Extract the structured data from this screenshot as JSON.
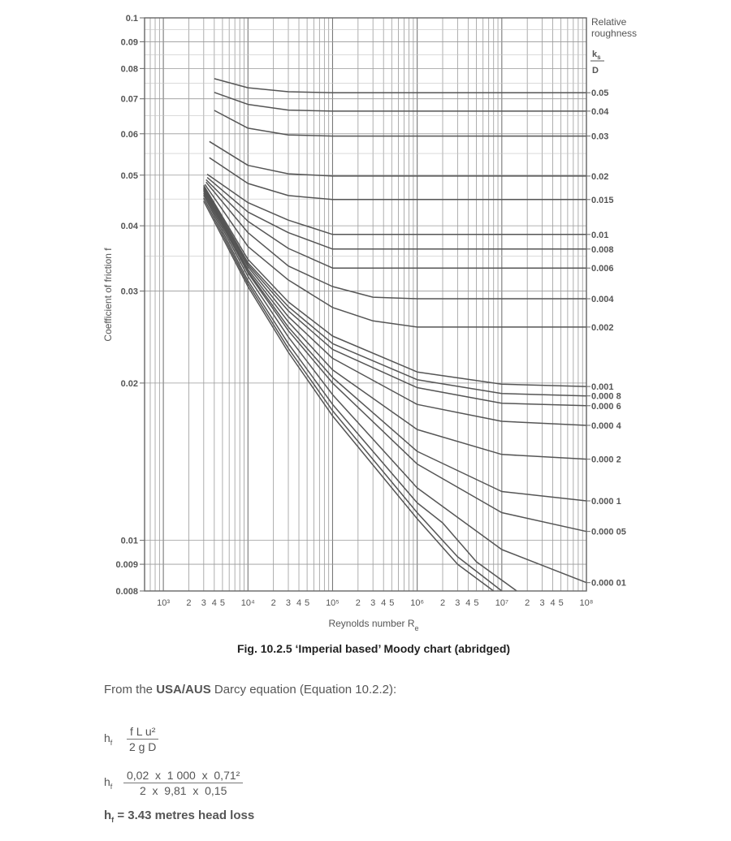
{
  "chart_data": {
    "type": "line",
    "title": "",
    "xlabel": "Reynolds number",
    "xlabel_sub": "e",
    "xlabel_main": "R",
    "ylabel": "Coefficient of friction f",
    "x_scale": "log",
    "y_scale": "log",
    "xlim": [
      600,
      100000000
    ],
    "ylim": [
      0.008,
      0.1
    ],
    "grid": true,
    "x_tick_labels": [
      {
        "x": 1000,
        "label": "10³"
      },
      {
        "x": 2000,
        "label": "2"
      },
      {
        "x": 3000,
        "label": "3"
      },
      {
        "x": 4000,
        "label": "4"
      },
      {
        "x": 5000,
        "label": "5"
      },
      {
        "x": 10000,
        "label": "10⁴"
      },
      {
        "x": 20000,
        "label": "2"
      },
      {
        "x": 30000,
        "label": "3"
      },
      {
        "x": 40000,
        "label": "4"
      },
      {
        "x": 50000,
        "label": "5"
      },
      {
        "x": 100000,
        "label": "10⁵"
      },
      {
        "x": 200000,
        "label": "2"
      },
      {
        "x": 300000,
        "label": "3"
      },
      {
        "x": 400000,
        "label": "4"
      },
      {
        "x": 500000,
        "label": "5"
      },
      {
        "x": 1000000,
        "label": "10⁶"
      },
      {
        "x": 2000000,
        "label": "2"
      },
      {
        "x": 3000000,
        "label": "3"
      },
      {
        "x": 4000000,
        "label": "4"
      },
      {
        "x": 5000000,
        "label": "5"
      },
      {
        "x": 10000000,
        "label": "10⁷"
      },
      {
        "x": 20000000,
        "label": "2"
      },
      {
        "x": 30000000,
        "label": "3"
      },
      {
        "x": 40000000,
        "label": "4"
      },
      {
        "x": 50000000,
        "label": "5"
      },
      {
        "x": 100000000,
        "label": "10⁸"
      }
    ],
    "y_ticks": [
      {
        "y": 0.1,
        "label": "0.1"
      },
      {
        "y": 0.09,
        "label": "0.09"
      },
      {
        "y": 0.08,
        "label": "0.08"
      },
      {
        "y": 0.07,
        "label": "0.07"
      },
      {
        "y": 0.06,
        "label": "0.06"
      },
      {
        "y": 0.05,
        "label": "0.05"
      },
      {
        "y": 0.04,
        "label": "0.04"
      },
      {
        "y": 0.03,
        "label": "0.03"
      },
      {
        "y": 0.02,
        "label": "0.02"
      },
      {
        "y": 0.01,
        "label": "0.01"
      },
      {
        "y": 0.009,
        "label": "0.009"
      },
      {
        "y": 0.008,
        "label": "0.008"
      }
    ],
    "legend_title": [
      "Relative",
      "roughness"
    ],
    "legend_fraction": {
      "num": "k",
      "num_sub": "s",
      "den": "D"
    },
    "series": [
      {
        "name": "0.05",
        "points": [
          [
            4000,
            0.0765
          ],
          [
            10000,
            0.0735
          ],
          [
            30000,
            0.0722
          ],
          [
            100000,
            0.0719
          ],
          [
            100000000,
            0.0719
          ]
        ]
      },
      {
        "name": "0.04",
        "points": [
          [
            4000,
            0.072
          ],
          [
            10000,
            0.0683
          ],
          [
            30000,
            0.0666
          ],
          [
            100000,
            0.0663
          ],
          [
            100000000,
            0.0663
          ]
        ]
      },
      {
        "name": "0.03",
        "points": [
          [
            4000,
            0.0665
          ],
          [
            10000,
            0.0615
          ],
          [
            30000,
            0.0597
          ],
          [
            100000,
            0.0594
          ],
          [
            100000000,
            0.0594
          ]
        ]
      },
      {
        "name": "0.02",
        "points": [
          [
            3500,
            0.058
          ],
          [
            10000,
            0.0522
          ],
          [
            30000,
            0.0503
          ],
          [
            100000,
            0.0498
          ],
          [
            100000000,
            0.0498
          ]
        ]
      },
      {
        "name": "0.015",
        "points": [
          [
            3500,
            0.054
          ],
          [
            10000,
            0.0482
          ],
          [
            30000,
            0.0457
          ],
          [
            100000,
            0.0449
          ],
          [
            100000000,
            0.0449
          ]
        ]
      },
      {
        "name": "0.01",
        "points": [
          [
            3300,
            0.0502
          ],
          [
            10000,
            0.0443
          ],
          [
            30000,
            0.041
          ],
          [
            100000,
            0.0385
          ],
          [
            100000000,
            0.0385
          ]
        ]
      },
      {
        "name": "0.008",
        "points": [
          [
            3300,
            0.0495
          ],
          [
            10000,
            0.0425
          ],
          [
            30000,
            0.0388
          ],
          [
            100000,
            0.0361
          ],
          [
            100000000,
            0.0361
          ]
        ]
      },
      {
        "name": "0.006",
        "points": [
          [
            3200,
            0.049
          ],
          [
            10000,
            0.0408
          ],
          [
            30000,
            0.0362
          ],
          [
            100000,
            0.0332
          ],
          [
            100000000,
            0.0332
          ]
        ]
      },
      {
        "name": "0.004",
        "points": [
          [
            3200,
            0.0485
          ],
          [
            10000,
            0.0388
          ],
          [
            30000,
            0.0335
          ],
          [
            100000,
            0.0306
          ],
          [
            300000,
            0.0292
          ],
          [
            1000000,
            0.029
          ],
          [
            100000000,
            0.029
          ]
        ]
      },
      {
        "name": "0.002",
        "points": [
          [
            3100,
            0.048
          ],
          [
            10000,
            0.0365
          ],
          [
            30000,
            0.0315
          ],
          [
            100000,
            0.0279
          ],
          [
            300000,
            0.0263
          ],
          [
            1000000,
            0.0256
          ],
          [
            100000000,
            0.0256
          ]
        ]
      },
      {
        "name": "0.001",
        "points": [
          [
            3000,
            0.0478
          ],
          [
            10000,
            0.0345
          ],
          [
            30000,
            0.0286
          ],
          [
            100000,
            0.0246
          ],
          [
            1000000,
            0.021
          ],
          [
            10000000,
            0.0199
          ],
          [
            100000000,
            0.0197
          ]
        ]
      },
      {
        "name": "0.000 8",
        "points": [
          [
            3000,
            0.0476
          ],
          [
            10000,
            0.034
          ],
          [
            30000,
            0.028
          ],
          [
            100000,
            0.0238
          ],
          [
            1000000,
            0.0203
          ],
          [
            10000000,
            0.0191
          ],
          [
            100000000,
            0.0189
          ]
        ]
      },
      {
        "name": "0.000 6",
        "points": [
          [
            3000,
            0.0474
          ],
          [
            10000,
            0.0337
          ],
          [
            30000,
            0.0275
          ],
          [
            100000,
            0.0232
          ],
          [
            1000000,
            0.0196
          ],
          [
            10000000,
            0.0183
          ],
          [
            100000000,
            0.0181
          ]
        ]
      },
      {
        "name": "0.000 4",
        "points": [
          [
            3000,
            0.0472
          ],
          [
            10000,
            0.0334
          ],
          [
            30000,
            0.0268
          ],
          [
            100000,
            0.0223
          ],
          [
            1000000,
            0.0182
          ],
          [
            10000000,
            0.0169
          ],
          [
            100000000,
            0.0166
          ]
        ]
      },
      {
        "name": "0.000 2",
        "points": [
          [
            3000,
            0.047
          ],
          [
            10000,
            0.033
          ],
          [
            30000,
            0.0262
          ],
          [
            100000,
            0.0212
          ],
          [
            1000000,
            0.0163
          ],
          [
            10000000,
            0.0146
          ],
          [
            100000000,
            0.0143
          ]
        ]
      },
      {
        "name": "0.000 1",
        "points": [
          [
            3000,
            0.0468
          ],
          [
            10000,
            0.0327
          ],
          [
            30000,
            0.0256
          ],
          [
            100000,
            0.0205
          ],
          [
            1000000,
            0.0148
          ],
          [
            10000000,
            0.0124
          ],
          [
            100000000,
            0.0119
          ]
        ]
      },
      {
        "name": "0.000 05",
        "points": [
          [
            3000,
            0.0466
          ],
          [
            10000,
            0.0325
          ],
          [
            30000,
            0.0252
          ],
          [
            100000,
            0.02
          ],
          [
            1000000,
            0.014
          ],
          [
            10000000,
            0.0113
          ],
          [
            100000000,
            0.0104
          ]
        ]
      },
      {
        "name": "0.000 01",
        "points": [
          [
            3000,
            0.0462
          ],
          [
            10000,
            0.032
          ],
          [
            30000,
            0.0245
          ],
          [
            100000,
            0.019
          ],
          [
            1000000,
            0.0126
          ],
          [
            10000000,
            0.0096
          ],
          [
            100000000,
            0.0083
          ]
        ]
      },
      {
        "name": "",
        "points": [
          [
            3000,
            0.0458
          ],
          [
            10000,
            0.0314
          ],
          [
            30000,
            0.0238
          ],
          [
            100000,
            0.0182
          ],
          [
            1000000,
            0.0118
          ],
          [
            2000000,
            0.0108
          ],
          [
            5000000,
            0.0091
          ],
          [
            15000000,
            0.008
          ]
        ]
      },
      {
        "name": "",
        "points": [
          [
            3000,
            0.0452
          ],
          [
            10000,
            0.031
          ],
          [
            30000,
            0.0233
          ],
          [
            100000,
            0.0177
          ],
          [
            1000000,
            0.0113
          ],
          [
            3000000,
            0.0093
          ],
          [
            10000000,
            0.008
          ]
        ]
      },
      {
        "name": "",
        "points": [
          [
            3000,
            0.0446
          ],
          [
            10000,
            0.0306
          ],
          [
            30000,
            0.0229
          ],
          [
            100000,
            0.0173
          ],
          [
            1000000,
            0.011
          ],
          [
            3000000,
            0.009
          ],
          [
            8000000,
            0.008
          ]
        ]
      }
    ]
  },
  "caption": "Fig. 10.2.5 ‘Imperial based’ Moody chart (abridged)",
  "intro": {
    "before": "From the ",
    "bold": "USA/AUS",
    "after": " Darcy equation (Equation 10.2.2):"
  },
  "equations": [
    {
      "lhs": "h",
      "lhs_sub": "f",
      "numerator": "f L u²",
      "denominator": "2 g D"
    },
    {
      "lhs": "h",
      "lhs_sub": "f",
      "numerator": "0,02  x  1 000  x  0,71²",
      "denominator": "2  x  9,81  x  0,15"
    }
  ],
  "result": {
    "lhs": "h",
    "lhs_sub": "f",
    "text": " = 3.43 metres head loss"
  }
}
